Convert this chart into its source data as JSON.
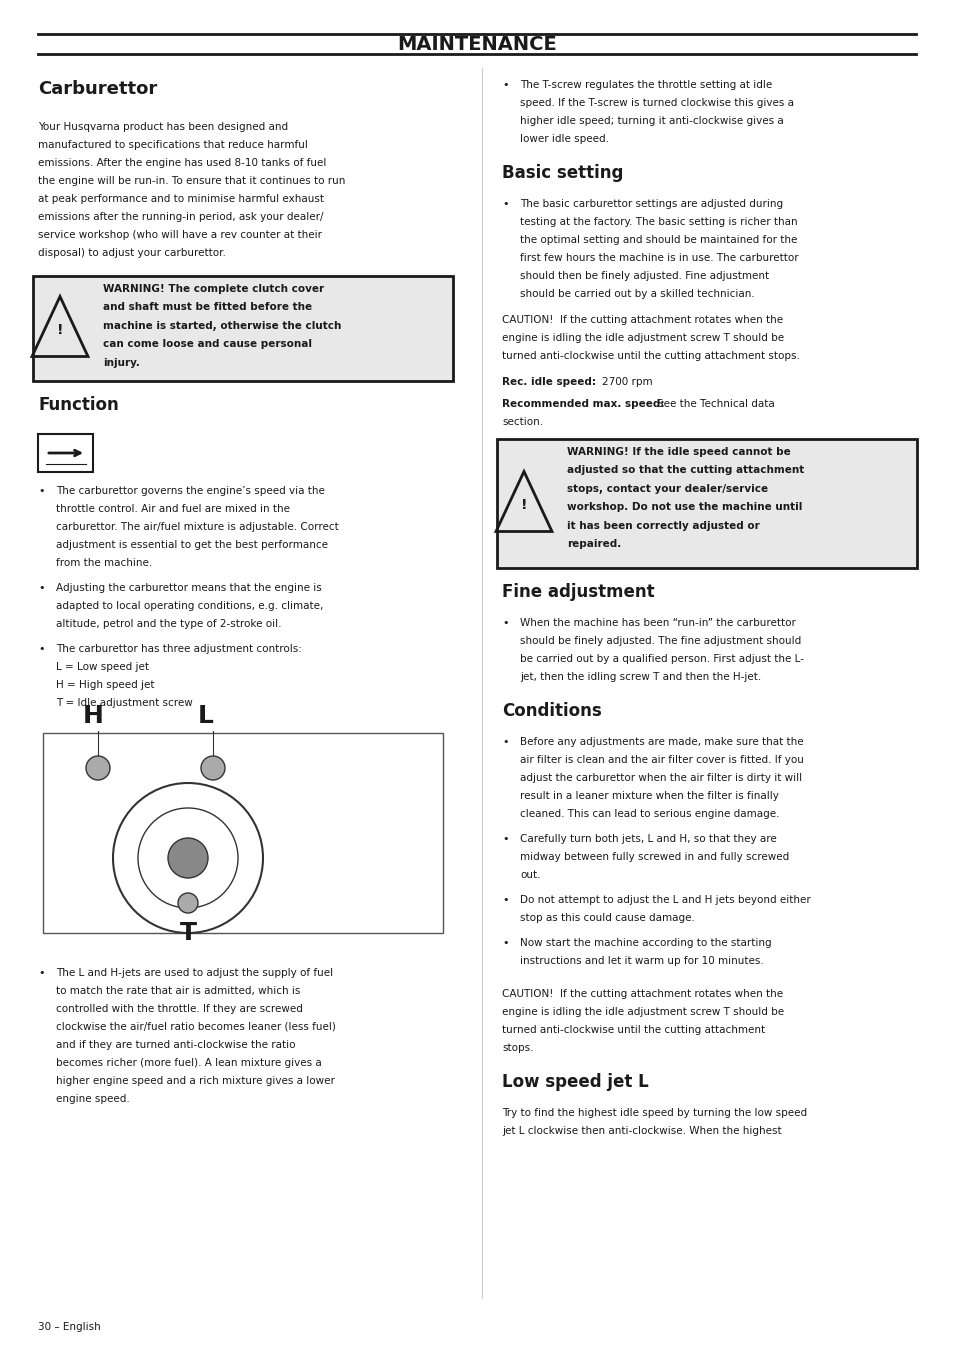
{
  "bg_color": "#ffffff",
  "text_color": "#1a1a1a",
  "page_width": 9.54,
  "page_height": 13.52,
  "header_title": "MAINTENANCE",
  "footer_text": "30 – English",
  "left_col": {
    "section1_title": "Carburettor",
    "section1_body": "Your Husqvarna product has been designed and\nmanufactured to specifications that reduce harmful\nemissions. After the engine has used 8-10 tanks of fuel\nthe engine will be run-in. To ensure that it continues to run\nat peak performance and to minimise harmful exhaust\nemissions after the running-in period, ask your dealer/\nservice workshop (who will have a rev counter at their\ndisposal) to adjust your carburettor.",
    "warning1_text": "WARNING! The complete clutch cover\nand shaft must be fitted before the\nmachine is started, otherwise the clutch\ncan come loose and cause personal\ninjury.",
    "section2_title": "Function",
    "bullet1": "The carburettor governs the engine’s speed via the\nthrottle control. Air and fuel are mixed in the\ncarburettor. The air/fuel mixture is adjustable. Correct\nadjustment is essential to get the best performance\nfrom the machine.",
    "bullet2": "Adjusting the carburettor means that the engine is\nadapted to local operating conditions, e.g. climate,\naltitude, petrol and the type of 2-stroke oil.",
    "bullet3": "The carburettor has three adjustment controls:\nL = Low speed jet\nH = High speed jet\nT = Idle adjustment screw",
    "h_label": "H",
    "l_label": "L",
    "t_label": "T",
    "bullet4": "The L and H-jets are used to adjust the supply of fuel\nto match the rate that air is admitted, which is\ncontrolled with the throttle. If they are screwed\nclockwise the air/fuel ratio becomes leaner (less fuel)\nand if they are turned anti-clockwise the ratio\nbecomes richer (more fuel). A lean mixture gives a\nhigher engine speed and a rich mixture gives a lower\nengine speed."
  },
  "right_col": {
    "bullet_tscrew": "The T-screw regulates the throttle setting at idle\nspeed. If the T-screw is turned clockwise this gives a\nhigher idle speed; turning it anti-clockwise gives a\nlower idle speed.",
    "section3_title": "Basic setting",
    "bullet_basic": "The basic carburettor settings are adjusted during\ntesting at the factory. The basic setting is richer than\nthe optimal setting and should be maintained for the\nfirst few hours the machine is in use. The carburettor\nshould then be finely adjusted. Fine adjustment\nshould be carried out by a skilled technician.",
    "caution1": "CAUTION!  If the cutting attachment rotates when the\nengine is idling the idle adjustment screw T should be\nturned anti-clockwise until the cutting attachment stops.",
    "rec_idle_label": "Rec. idle speed:",
    "rec_idle_value": "2700 rpm",
    "rec_max_label": "Recommended max. speed:",
    "rec_max_value": "See the Technical data\nsection.",
    "warning2_text": "WARNING! If the idle speed cannot be\nadjusted so that the cutting attachment\nstops, contact your dealer/service\nworkshop. Do not use the machine until\nit has been correctly adjusted or\nrepaired.",
    "section4_title": "Fine adjustment",
    "bullet_fine": "When the machine has been “run-in” the carburettor\nshould be finely adjusted. The fine adjustment should\nbe carried out by a qualified person. First adjust the L-\njet, then the idling screw T and then the H-jet.",
    "section5_title": "Conditions",
    "bullet_cond1": "Before any adjustments are made, make sure that the\nair filter is clean and the air filter cover is fitted. If you\nadjust the carburettor when the air filter is dirty it will\nresult in a leaner mixture when the filter is finally\ncleaned. This can lead to serious engine damage.",
    "bullet_cond2": "Carefully turn both jets, L and H, so that they are\nmidway between fully screwed in and fully screwed\nout.",
    "bullet_cond3": "Do not attempt to adjust the L and H jets beyond either\nstop as this could cause damage.",
    "bullet_cond4": "Now start the machine according to the starting\ninstructions and let it warm up for 10 minutes.",
    "caution2": "CAUTION!  If the cutting attachment rotates when the\nengine is idling the idle adjustment screw T should be\nturned anti-clockwise until the cutting attachment\nstops.",
    "section6_title": "Low speed jet L",
    "section6_body": "Try to find the highest idle speed by turning the low speed\njet L clockwise then anti-clockwise. When the highest"
  }
}
